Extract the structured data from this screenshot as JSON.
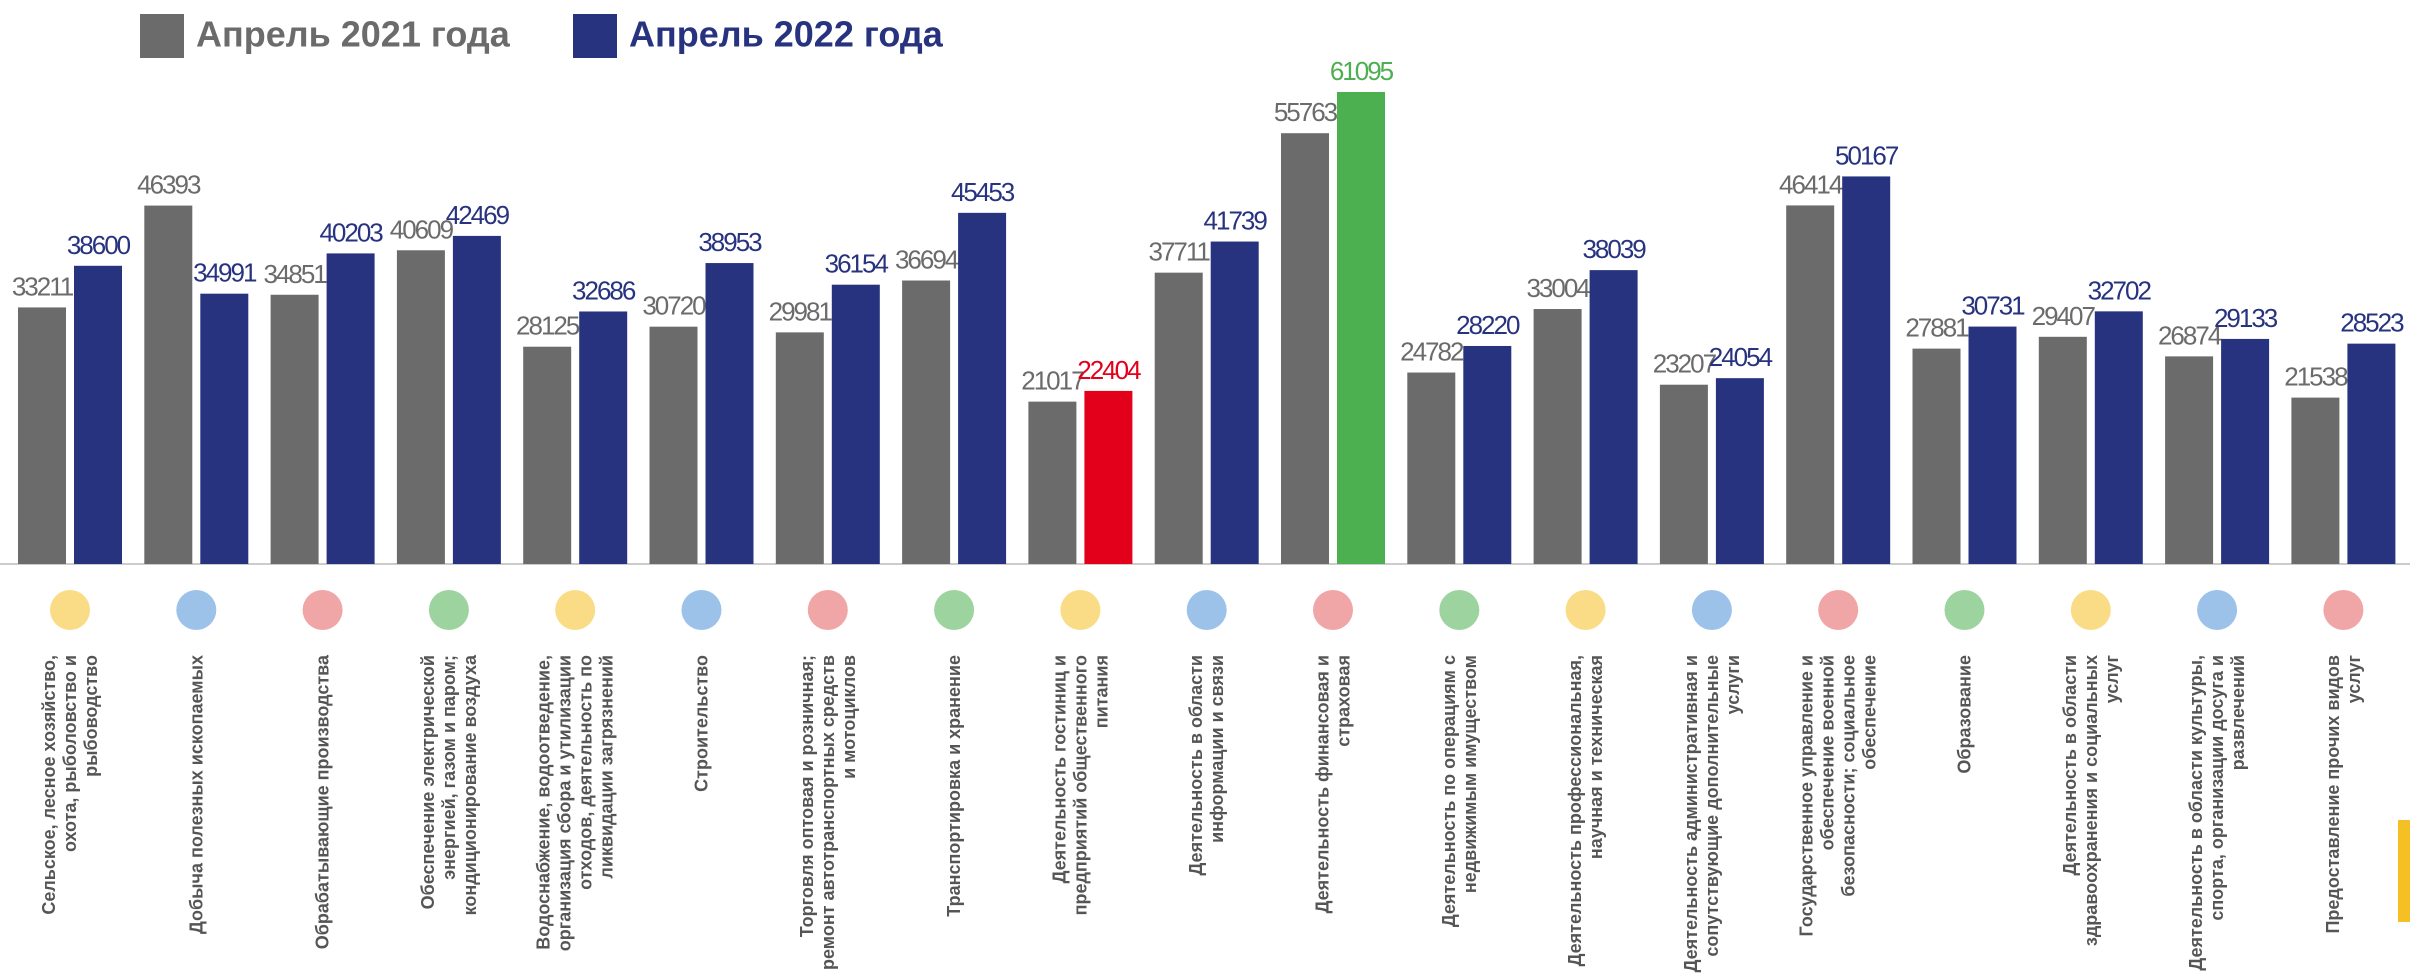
{
  "chart_data": {
    "type": "bar",
    "categories": [
      "Сельское, лесное хозяйство,\nохота, рыболовство и\nрыбоводство",
      "Добыча полезных ископаемых",
      "Обрабатывающие производства",
      "Обеспечение электрической\nэнергией, газом и паром;\nкондиционирование воздуха",
      "Водоснабжение, водоотведение,\nорганизация сбора и утилизации\nотходов, деятельность по\nликвидации загрязнений",
      "Строительство",
      "Торговля оптовая и розничная;\nремонт автотранспортных средств\nи мотоциклов",
      "Транспортировка и хранение",
      "Деятельность гостиниц и\nпредприятий общественного\nпитания",
      "Деятельность в области\nинформации и связи",
      "Деятельность финансовая и\nстраховая",
      "Деятельность по операциям с\nнедвижимым имуществом",
      "Деятельность профессиональная,\nнаучная и техническая",
      "Деятельность административная и\nсопутствующие дополнительные\nуслуги",
      "Государственное управление и\nобеспечение военной\nбезопасности; социальное\nобеспечение",
      "Образование",
      "Деятельность в области\nздравоохранения и социальных\nуслуг",
      "Деятельность в области культуры,\nспорта, организации досуга и\nразвлечений",
      "Предоставление прочих видов\nуслуг"
    ],
    "series": [
      {
        "name": "Апрель 2021 года",
        "color": "#6b6b6b",
        "values": [
          33211,
          46393,
          34851,
          40609,
          28125,
          30720,
          29981,
          36694,
          21017,
          37711,
          55763,
          24782,
          33004,
          23207,
          46414,
          27881,
          29407,
          26874,
          21538
        ]
      },
      {
        "name": "Апрель 2022 года",
        "color": "#27337f",
        "colors": [
          "#27337f",
          "#27337f",
          "#27337f",
          "#27337f",
          "#27337f",
          "#27337f",
          "#27337f",
          "#27337f",
          "#e3001b",
          "#27337f",
          "#4caf50",
          "#27337f",
          "#27337f",
          "#27337f",
          "#27337f",
          "#27337f",
          "#27337f",
          "#27337f",
          "#27337f"
        ],
        "values": [
          38600,
          34991,
          40203,
          42469,
          32686,
          38953,
          36154,
          45453,
          22404,
          41739,
          61095,
          28220,
          38039,
          24054,
          50167,
          30731,
          32702,
          29133,
          28523
        ]
      }
    ]
  }
}
